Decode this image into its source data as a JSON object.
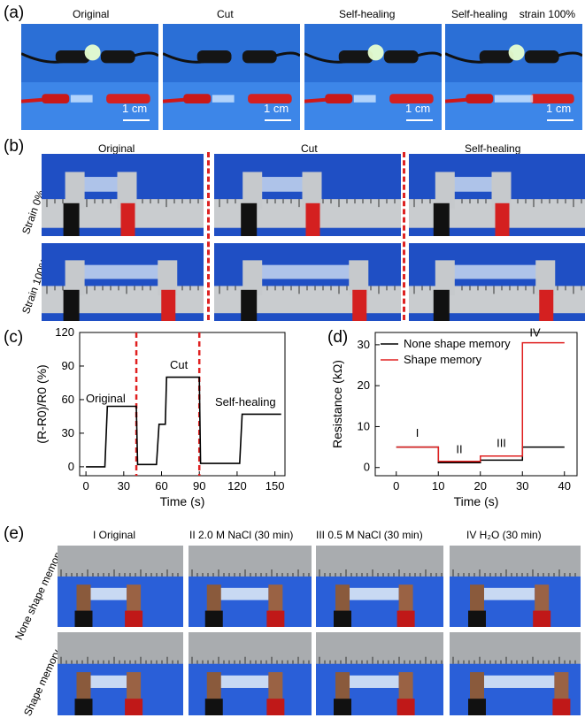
{
  "panel_a": {
    "label": "(a)",
    "captions": [
      "Original",
      "Cut",
      "Self-healing",
      "Self-healing    strain 100%"
    ],
    "scale": "1 cm"
  },
  "panel_b": {
    "label": "(b)",
    "captions": [
      "Original",
      "Cut",
      "Self-healing"
    ],
    "rows": [
      "Strain 0%",
      "Strain 100%"
    ]
  },
  "panel_c": {
    "label": "(c)",
    "annotations": [
      "Original",
      "Cut",
      "Self-healing"
    ],
    "colors": {
      "line": "#000000",
      "divider": "#e02020"
    }
  },
  "panel_d": {
    "label": "(d)",
    "stages": [
      "I",
      "II",
      "III",
      "IV"
    ],
    "colors": {
      "none": "#000000",
      "shape": "#e02020"
    }
  },
  "panel_e": {
    "label": "(e)",
    "captions": [
      "I Original",
      "II 2.0 M NaCl (30 min)",
      "III 0.5 M NaCl (30 min)",
      "IV H₂O (30 min)"
    ],
    "rows": [
      "None shape memory",
      "Shape memory"
    ]
  },
  "chart_data": [
    {
      "type": "line",
      "xlabel": "Time (s)",
      "ylabel": "(R-R0)/R0 (%)",
      "xlim": [
        -5,
        158
      ],
      "ylim": [
        -8,
        120
      ],
      "xticks": [
        0,
        30,
        60,
        90,
        120,
        150
      ],
      "yticks": [
        0,
        30,
        60,
        90,
        120
      ],
      "dividers_x": [
        40,
        90
      ],
      "series": [
        {
          "x": [
            0,
            15,
            17,
            40,
            41,
            56,
            58,
            63,
            64,
            90,
            91,
            122,
            124,
            155
          ],
          "values": [
            0,
            0,
            54,
            54,
            2,
            2,
            38,
            38,
            80,
            80,
            3,
            3,
            47,
            47
          ]
        }
      ]
    },
    {
      "type": "line",
      "xlabel": "Time (s)",
      "ylabel": "Resistance (kΩ)",
      "xlim": [
        -5,
        43
      ],
      "ylim": [
        -2,
        33
      ],
      "xticks": [
        0,
        10,
        20,
        30,
        40
      ],
      "yticks": [
        0,
        10,
        20,
        30
      ],
      "series": [
        {
          "name": "None shape memory",
          "x": [
            0,
            10,
            10,
            20,
            20,
            30,
            30,
            40
          ],
          "values": [
            5,
            5,
            1.2,
            1.2,
            1.8,
            1.8,
            5,
            5
          ]
        },
        {
          "name": "Shape memory",
          "x": [
            0,
            10,
            10,
            20,
            20,
            30,
            30,
            40
          ],
          "values": [
            5,
            5,
            1.5,
            1.5,
            2.8,
            2.8,
            30.5,
            30.5
          ]
        }
      ]
    }
  ]
}
